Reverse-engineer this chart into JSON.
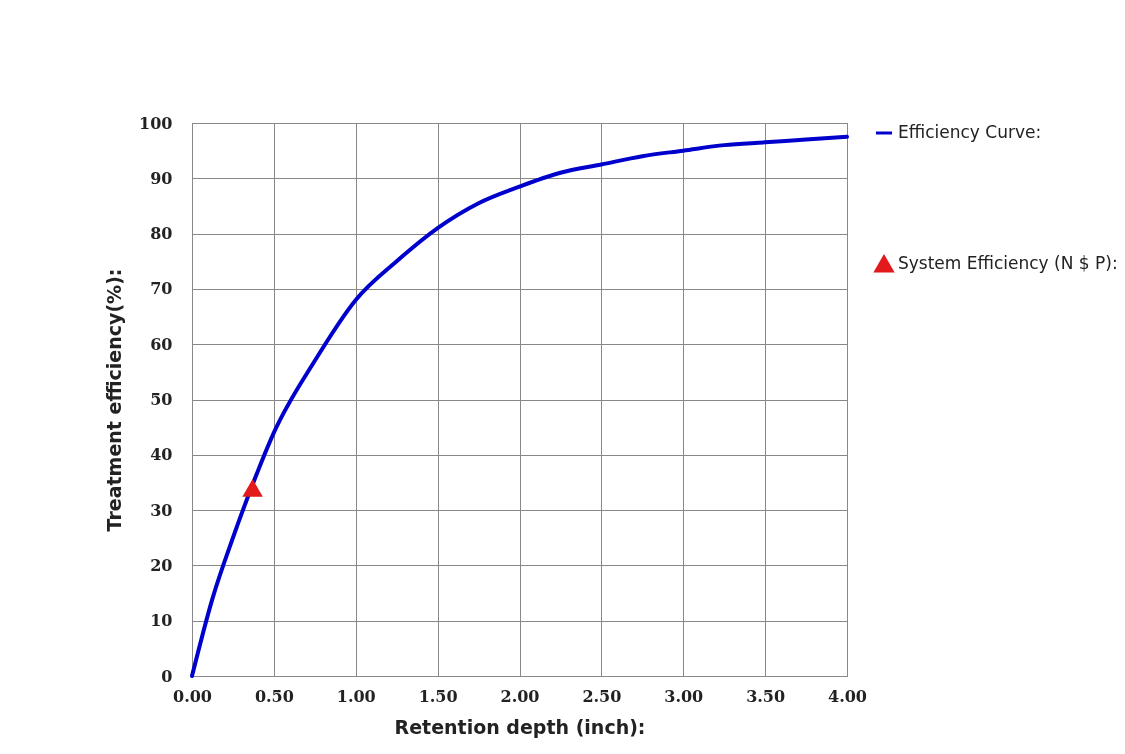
{
  "chart_data": {
    "type": "line",
    "xlabel": "Retention depth (inch):",
    "ylabel": "Treatment efficiency(%):",
    "xlim": [
      0,
      4
    ],
    "ylim": [
      0,
      100
    ],
    "xticks": [
      {
        "value": 0,
        "label": "0.00"
      },
      {
        "value": 0.5,
        "label": "0.50"
      },
      {
        "value": 1,
        "label": "1.00"
      },
      {
        "value": 1.5,
        "label": "1.50"
      },
      {
        "value": 2,
        "label": "2.00"
      },
      {
        "value": 2.5,
        "label": "2.50"
      },
      {
        "value": 3,
        "label": "3.00"
      },
      {
        "value": 3.5,
        "label": "3.50"
      },
      {
        "value": 4,
        "label": "4.00"
      }
    ],
    "yticks": [
      0,
      10,
      20,
      30,
      40,
      50,
      60,
      70,
      80,
      90,
      100
    ],
    "grid": true,
    "legend": "right",
    "series": [
      {
        "name": "Efficiency Curve:",
        "color": "#0000cc",
        "marker": "none",
        "x": [
          0,
          0.125,
          0.25,
          0.375,
          0.5,
          0.75,
          1,
          1.25,
          1.5,
          1.75,
          2,
          2.25,
          2.5,
          2.75,
          3,
          3.25,
          3.5,
          3.75,
          4
        ],
        "values": [
          0,
          14,
          25,
          35,
          44,
          57,
          68,
          75,
          81,
          85.5,
          88.5,
          91,
          92.5,
          94,
          95,
          96,
          96.5,
          97,
          97.5
        ]
      },
      {
        "name": "System Efficiency (N $ P):",
        "type": "scatter",
        "color": "#e31a1c",
        "marker": "triangle",
        "x": [
          0.37
        ],
        "values": [
          34
        ]
      }
    ]
  }
}
